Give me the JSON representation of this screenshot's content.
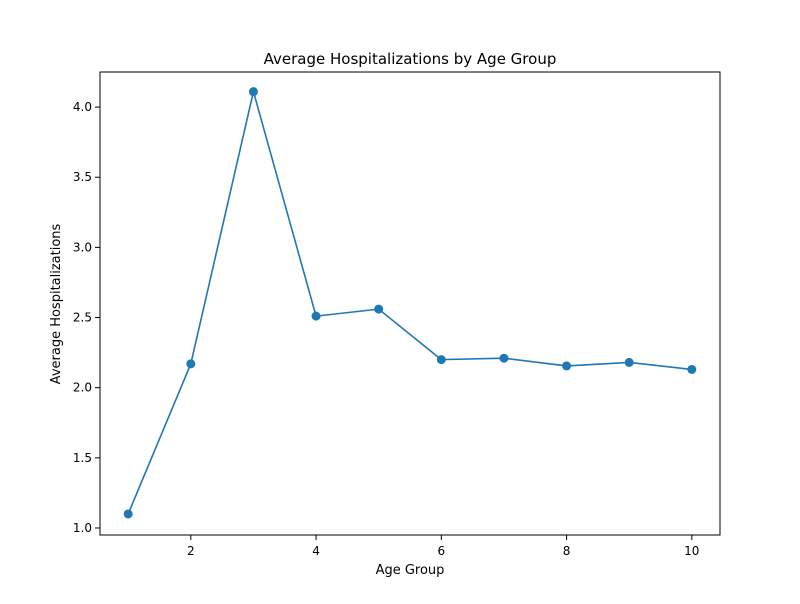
{
  "chart_data": {
    "type": "line",
    "title": "Average Hospitalizations by Age Group",
    "xlabel": "Age Group",
    "ylabel": "Average Hospitalizations",
    "x": [
      1,
      2,
      3,
      4,
      5,
      6,
      7,
      8,
      9,
      10
    ],
    "series": [
      {
        "values": [
          1.1,
          2.17,
          4.11,
          2.51,
          2.56,
          2.2,
          2.21,
          2.155,
          2.18,
          2.13
        ]
      }
    ],
    "xlim": [
      0.55,
      10.45
    ],
    "ylim": [
      0.95,
      4.25
    ],
    "xticks": [
      2,
      4,
      6,
      8,
      10
    ],
    "xtick_labels": [
      "2",
      "4",
      "6",
      "8",
      "10"
    ],
    "yticks": [
      1.0,
      1.5,
      2.0,
      2.5,
      3.0,
      3.5,
      4.0
    ],
    "ytick_labels": [
      "1.0",
      "1.5",
      "2.0",
      "2.5",
      "3.0",
      "3.5",
      "4.0"
    ],
    "grid": false,
    "legend": "none",
    "line_color": "#1f77b4",
    "marker": "circle"
  }
}
